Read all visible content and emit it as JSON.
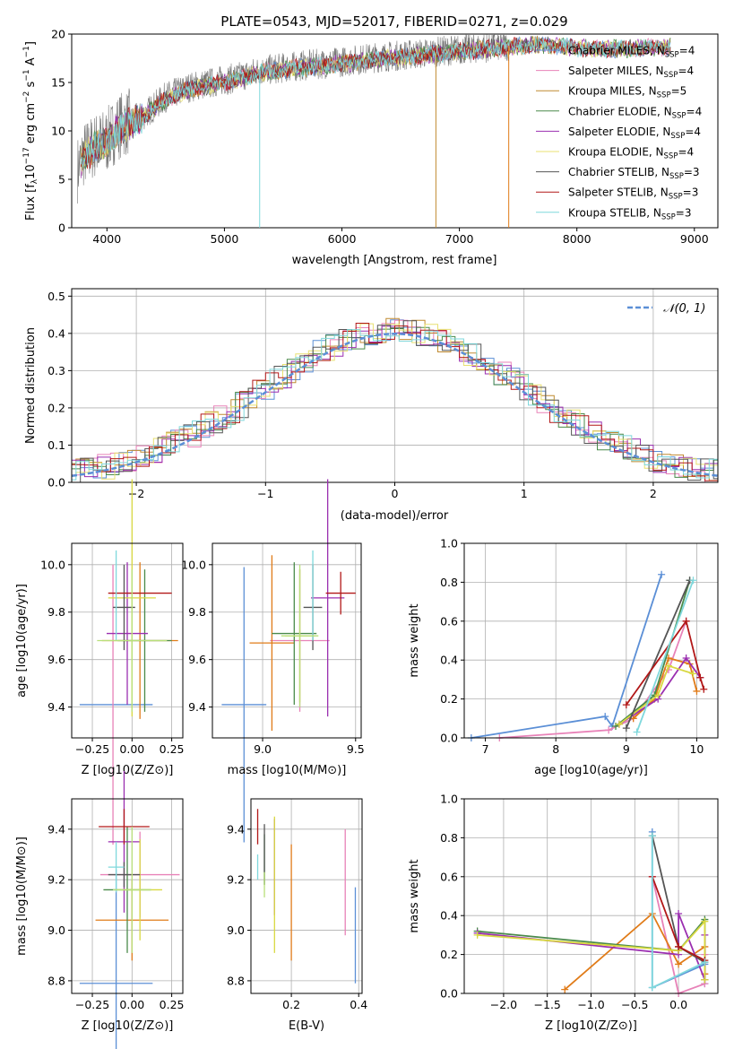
{
  "title": "PLATE=0543, MJD=52017, FIBERID=0271, z=0.029",
  "colors": {
    "chabrier_miles": "#5b8fd6",
    "salpeter_miles": "#e882b8",
    "kroupa_miles": "#e07b18",
    "chabrier_elodie": "#4a8a4a",
    "salpeter_elodie": "#9b2fb0",
    "kroupa_elodie": "#d8d840",
    "chabrier_stelib": "#555555",
    "salpeter_stelib": "#b21818",
    "kroupa_stelib": "#7fd8dc",
    "extra_yellowgreen": "#b8e07a"
  },
  "legend_top": [
    {
      "label": "Chabrier MILES, N",
      "sub": "SSP",
      "tail": "=4",
      "color": "#5b8fd6"
    },
    {
      "label": "Salpeter MILES, N",
      "sub": "SSP",
      "tail": "=4",
      "color": "#e882b8"
    },
    {
      "label": "Kroupa MILES, N",
      "sub": "SSP",
      "tail": "=5",
      "color": "#c08a30"
    },
    {
      "label": "Chabrier ELODIE, N",
      "sub": "SSP",
      "tail": "=4",
      "color": "#4a8a4a"
    },
    {
      "label": "Salpeter ELODIE, N",
      "sub": "SSP",
      "tail": "=4",
      "color": "#9b2fb0"
    },
    {
      "label": "Kroupa ELODIE, N",
      "sub": "SSP",
      "tail": "=4",
      "color": "#e8e070"
    },
    {
      "label": "Chabrier STELIB, N",
      "sub": "SSP",
      "tail": "=3",
      "color": "#555555"
    },
    {
      "label": "Salpeter STELIB, N",
      "sub": "SSP",
      "tail": "=3",
      "color": "#b21818"
    },
    {
      "label": "Kroupa STELIB, N",
      "sub": "SSP",
      "tail": "=3",
      "color": "#7fd8dc"
    }
  ],
  "chart_data": [
    {
      "type": "line",
      "id": "spectrum",
      "xlabel": "wavelength [Angstrom, rest frame]",
      "ylabel": "Flux [fλ10⁻¹⁷ erg cm⁻² s⁻¹ A⁻¹]",
      "xlim": [
        3700,
        9200
      ],
      "ylim": [
        0,
        20
      ],
      "xticks": [
        4000,
        5000,
        6000,
        7000,
        8000,
        9000
      ],
      "yticks": [
        0,
        5,
        10,
        15,
        20
      ],
      "continuum": {
        "x": [
          3750,
          3800,
          3900,
          4000,
          4100,
          4200,
          4300,
          4500,
          4700,
          4900,
          5100,
          5300,
          5500,
          5700,
          5900,
          6100,
          6300,
          6500,
          6700,
          6900,
          7100,
          7300,
          7420
        ],
        "y": [
          6.0,
          7.5,
          8.5,
          9.0,
          10.5,
          11.0,
          11.5,
          13.5,
          14.5,
          15.0,
          15.5,
          16.2,
          16.5,
          16.8,
          17.0,
          17.3,
          17.6,
          17.8,
          18.0,
          18.3,
          18.5,
          18.7,
          18.8
        ]
      },
      "model_extension": {
        "x": [
          7420,
          7600,
          7800,
          8000,
          8200,
          8400,
          8600,
          8800
        ],
        "y": [
          18.9,
          19.1,
          19.0,
          18.8,
          18.6,
          18.7,
          18.8,
          18.9
        ]
      },
      "drops": [
        {
          "x": 5300,
          "y_bottom": 0.0,
          "color": "#7fd8dc"
        },
        {
          "x": 6800,
          "y_bottom": 0.0,
          "color": "#c08a30"
        },
        {
          "x": 7420,
          "y_bottom": 0.0,
          "color": "#e07b18"
        }
      ]
    },
    {
      "type": "histogram",
      "id": "residuals",
      "xlabel": "(data-model)/error",
      "ylabel": "Normed distribution",
      "xlim": [
        -2.5,
        2.5
      ],
      "ylim": [
        0,
        0.52
      ],
      "xticks": [
        -2,
        -1,
        0,
        1,
        2
      ],
      "yticks": [
        0.0,
        0.1,
        0.2,
        0.3,
        0.4,
        0.5
      ],
      "legend": "𝒩(0, 1)",
      "bin_width": 0.1,
      "reference_curve": "N(0,1)"
    },
    {
      "type": "scatter",
      "id": "age_vs_Z",
      "xlabel": "Z [log10(Z/Z⊙)]",
      "ylabel": "age [log10(age/yr)]",
      "xlim": [
        -0.38,
        0.32
      ],
      "ylim": [
        9.27,
        10.09
      ],
      "xticks": [
        -0.25,
        0.0,
        0.25
      ],
      "yticks": [
        9.4,
        9.6,
        9.8,
        10.0
      ]
    },
    {
      "type": "scatter",
      "id": "age_vs_mass",
      "xlabel": "mass [log10(M/M⊙)]",
      "ylabel": "",
      "xlim": [
        8.73,
        9.53
      ],
      "ylim": [
        9.27,
        10.09
      ],
      "xticks": [
        9.0,
        9.5
      ],
      "yticks": [
        9.4,
        9.6,
        9.8,
        10.0
      ]
    },
    {
      "type": "line",
      "id": "weight_vs_age",
      "xlabel": "age [log10(age/yr)]",
      "ylabel": "mass weight",
      "xlim": [
        6.7,
        10.3
      ],
      "ylim": [
        0,
        1.0
      ],
      "xticks": [
        7,
        8,
        9,
        10
      ],
      "yticks": [
        0.0,
        0.2,
        0.4,
        0.6,
        0.8,
        1.0
      ],
      "series": [
        {
          "name": "Chabrier MILES",
          "color": "#5b8fd6",
          "x": [
            6.8,
            8.7,
            8.8,
            9.5
          ],
          "y": [
            0.0,
            0.11,
            0.06,
            0.84
          ]
        },
        {
          "name": "Salpeter MILES",
          "color": "#e882b8",
          "x": [
            7.2,
            8.75,
            9.1,
            9.6,
            9.85
          ],
          "y": [
            0.0,
            0.04,
            0.1,
            0.35,
            0.6
          ]
        },
        {
          "name": "Kroupa MILES",
          "color": "#e07b18",
          "x": [
            9.1,
            9.4,
            9.6,
            9.9,
            10.0
          ],
          "y": [
            0.1,
            0.2,
            0.41,
            0.38,
            0.24
          ]
        },
        {
          "name": "Chabrier ELODIE",
          "color": "#4a8a4a",
          "x": [
            8.85,
            9.4,
            9.9
          ],
          "y": [
            0.06,
            0.22,
            0.81
          ]
        },
        {
          "name": "Salpeter ELODIE",
          "color": "#9b2fb0",
          "x": [
            8.9,
            9.45,
            9.85,
            10.05
          ],
          "y": [
            0.07,
            0.2,
            0.41,
            0.31
          ]
        },
        {
          "name": "Kroupa ELODIE",
          "color": "#d8d840",
          "x": [
            8.9,
            9.45,
            9.6,
            9.95
          ],
          "y": [
            0.07,
            0.22,
            0.37,
            0.33
          ]
        },
        {
          "name": "Chabrier STELIB",
          "color": "#555555",
          "x": [
            9.0,
            9.9
          ],
          "y": [
            0.05,
            0.81
          ]
        },
        {
          "name": "Salpeter STELIB",
          "color": "#b21818",
          "x": [
            9.0,
            9.85,
            10.05,
            10.1
          ],
          "y": [
            0.17,
            0.6,
            0.31,
            0.25
          ]
        },
        {
          "name": "Kroupa STELIB",
          "color": "#7fd8dc",
          "x": [
            9.15,
            9.95
          ],
          "y": [
            0.03,
            0.81
          ]
        }
      ]
    },
    {
      "type": "scatter",
      "id": "mass_vs_Z",
      "xlabel": "Z [log10(Z/Z⊙)]",
      "ylabel": "mass [log10(M/M⊙)]",
      "xlim": [
        -0.38,
        0.32
      ],
      "ylim": [
        8.75,
        9.52
      ],
      "xticks": [
        -0.25,
        0.0,
        0.25
      ],
      "yticks": [
        8.8,
        9.0,
        9.2,
        9.4
      ]
    },
    {
      "type": "scatter",
      "id": "mass_vs_ebv",
      "xlabel": "E(B-V)",
      "ylabel": "",
      "xlim": [
        0.08,
        0.41
      ],
      "ylim": [
        8.75,
        9.52
      ],
      "xticks": [
        0.2,
        0.4
      ],
      "yticks": [
        8.8,
        9.0,
        9.2,
        9.4
      ]
    },
    {
      "type": "line",
      "id": "weight_vs_Z",
      "xlabel": "Z [log10(Z/Z⊙)]",
      "ylabel": "mass weight",
      "xlim": [
        -2.45,
        0.45
      ],
      "ylim": [
        0,
        1.0
      ],
      "xticks": [
        -2.0,
        -1.5,
        -1.0,
        -0.5,
        0.0
      ],
      "yticks": [
        0.0,
        0.2,
        0.4,
        0.6,
        0.8,
        1.0
      ],
      "series": [
        {
          "name": "Chabrier MILES",
          "color": "#5b8fd6",
          "x": [
            -0.3,
            -0.3,
            0.3,
            0.3
          ],
          "y": [
            0.83,
            0.03,
            0.15,
            0.05
          ]
        },
        {
          "name": "Salpeter MILES",
          "color": "#e882b8",
          "x": [
            -0.3,
            0.0,
            0.3,
            0.3
          ],
          "y": [
            0.6,
            0.0,
            0.05,
            0.2
          ]
        },
        {
          "name": "Kroupa MILES",
          "color": "#e07b18",
          "x": [
            -1.3,
            -0.3,
            0.0,
            0.3,
            0.3
          ],
          "y": [
            0.02,
            0.41,
            0.15,
            0.24,
            0.1
          ]
        },
        {
          "name": "Chabrier ELODIE",
          "color": "#4a8a4a",
          "x": [
            -2.3,
            0.0,
            0.3,
            0.3
          ],
          "y": [
            0.32,
            0.22,
            0.38,
            0.07
          ]
        },
        {
          "name": "Salpeter ELODIE",
          "color": "#9b2fb0",
          "x": [
            -2.3,
            0.0,
            0.0,
            0.3,
            0.3
          ],
          "y": [
            0.31,
            0.2,
            0.41,
            0.07,
            0.3
          ]
        },
        {
          "name": "Kroupa ELODIE",
          "color": "#d8d840",
          "x": [
            -2.3,
            0.0,
            0.3,
            0.3
          ],
          "y": [
            0.3,
            0.22,
            0.37,
            0.07
          ]
        },
        {
          "name": "Chabrier STELIB",
          "color": "#555555",
          "x": [
            -0.3,
            0.0,
            0.3
          ],
          "y": [
            0.81,
            0.24,
            0.16
          ]
        },
        {
          "name": "Salpeter STELIB",
          "color": "#b21818",
          "x": [
            -0.3,
            0.0,
            0.3
          ],
          "y": [
            0.6,
            0.24,
            0.17
          ]
        },
        {
          "name": "Kroupa STELIB",
          "color": "#7fd8dc",
          "x": [
            -0.3,
            -0.3,
            0.3
          ],
          "y": [
            0.81,
            0.03,
            0.16
          ]
        }
      ]
    }
  ]
}
